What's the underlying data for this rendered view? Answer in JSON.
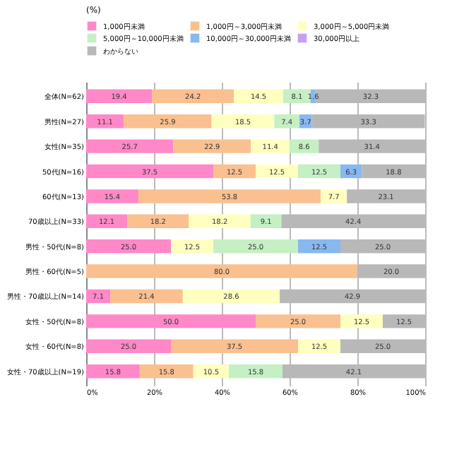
{
  "chart_data": {
    "type": "bar",
    "orientation": "horizontal",
    "stacked": true,
    "annotations": [
      "(%)"
    ],
    "categories": [
      "全体(N=62)",
      "男性(N=27)",
      "女性(N=35)",
      "50代(N=16)",
      "60代(N=13)",
      "70歳以上(N=33)",
      "男性・50代(N=8)",
      "男性・60代(N=5)",
      "男性・70歳以上(N=14)",
      "女性・50代(N=8)",
      "女性・60代(N=8)",
      "女性・70歳以上(N=19)"
    ],
    "series": [
      {
        "name": "1,000円未満",
        "color": "#ff88c8",
        "values": [
          19.4,
          11.1,
          25.7,
          37.5,
          15.4,
          12.1,
          25.0,
          0,
          7.1,
          50.0,
          25.0,
          15.8
        ],
        "value_labels": [
          "19.4",
          "11.1",
          "25.7",
          "37.5",
          "15.4",
          "12.1",
          "25.0",
          null,
          "7.1",
          "50.0",
          "25.0",
          "15.8"
        ]
      },
      {
        "name": "1,000円～3,000円未満",
        "color": "#fac090",
        "values": [
          24.2,
          25.9,
          22.9,
          12.5,
          53.8,
          18.2,
          0,
          80.0,
          21.4,
          25.0,
          37.5,
          15.8
        ],
        "value_labels": [
          "24.2",
          "25.9",
          "22.9",
          "12.5",
          "53.8",
          "18.2",
          null,
          "80.0",
          "21.4",
          "25.0",
          "37.5",
          "15.8"
        ]
      },
      {
        "name": "3,000円～5,000円未満",
        "color": "#ffffc0",
        "values": [
          14.5,
          18.5,
          11.4,
          12.5,
          7.7,
          18.2,
          12.5,
          0,
          28.6,
          12.5,
          12.5,
          10.5
        ],
        "value_labels": [
          "14.5",
          "18.5",
          "11.4",
          "12.5",
          "7.7",
          "18.2",
          "12.5",
          null,
          "28.6",
          "12.5",
          "12.5",
          "10.5"
        ]
      },
      {
        "name": "5,000円～10,000円未満",
        "color": "#c4f0c4",
        "values": [
          8.1,
          7.4,
          8.6,
          12.5,
          0,
          9.1,
          25.0,
          0,
          0,
          0,
          0,
          15.8
        ],
        "value_labels": [
          "8.1",
          "7.4",
          "8.6",
          "12.5",
          null,
          "9.1",
          "25.0",
          null,
          null,
          null,
          null,
          "15.8"
        ]
      },
      {
        "name": "10,000円～30,000円未満",
        "color": "#88b8f0",
        "values": [
          1.6,
          3.7,
          0,
          6.3,
          0,
          0,
          12.5,
          0,
          0,
          0,
          0,
          0
        ],
        "value_labels": [
          "1.6",
          "3.7",
          null,
          "6.3",
          null,
          null,
          "12.5",
          null,
          null,
          null,
          null,
          null
        ]
      },
      {
        "name": "30,000円以上",
        "color": "#c8a0f0",
        "values": [
          0,
          0,
          0,
          0,
          0,
          0,
          0,
          0,
          0,
          0,
          0,
          0
        ]
      },
      {
        "name": "わからない",
        "color": "#b8b8b8",
        "values": [
          32.3,
          33.3,
          31.4,
          18.8,
          23.1,
          42.4,
          25.0,
          20.0,
          42.9,
          12.5,
          25.0,
          42.1
        ],
        "value_labels": [
          "32.3",
          "33.3",
          "31.4",
          "18.8",
          "23.1",
          "42.4",
          "25.0",
          "20.0",
          "42.9",
          "12.5",
          "25.0",
          "42.1"
        ]
      }
    ],
    "xlim": [
      0,
      100
    ],
    "xticks": [
      {
        "value": 0,
        "label": "0%"
      },
      {
        "value": 20,
        "label": "20%"
      },
      {
        "value": 40,
        "label": "40%"
      },
      {
        "value": 60,
        "label": "60%"
      },
      {
        "value": 80,
        "label": "80%"
      },
      {
        "value": 100,
        "label": "100%"
      }
    ],
    "grid": "x",
    "legend": "top"
  }
}
